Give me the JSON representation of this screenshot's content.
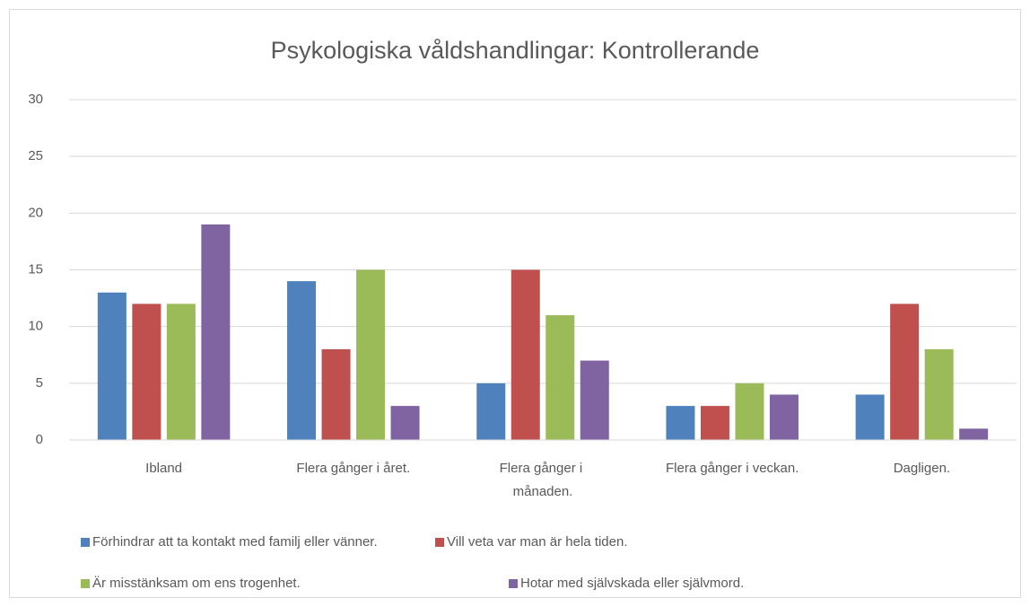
{
  "chart_data": {
    "type": "bar",
    "title": "Psykologiska våldshandlingar: Kontrollerande",
    "categories": [
      "Ibland",
      "Flera gånger i året.",
      "Flera gånger i månaden.",
      "Flera gånger i veckan.",
      "Dagligen."
    ],
    "series": [
      {
        "name": "Förhindrar att ta kontakt med familj eller vänner.",
        "color": "#4f81bd",
        "values": [
          13,
          14,
          5,
          3,
          4
        ]
      },
      {
        "name": "Vill veta var man är hela tiden.",
        "color": "#c0504d",
        "values": [
          12,
          8,
          15,
          3,
          12
        ]
      },
      {
        "name": "Är misstänksam om ens trogenhet.",
        "color": "#9bbb59",
        "values": [
          12,
          15,
          11,
          5,
          8
        ]
      },
      {
        "name": "Hotar med självskada eller självmord.",
        "color": "#8064a2",
        "values": [
          19,
          3,
          7,
          4,
          1
        ]
      }
    ],
    "ylim": [
      0,
      30
    ],
    "yticks": [
      0,
      5,
      10,
      15,
      20,
      25,
      30
    ],
    "grid": true,
    "legend": "bottom"
  }
}
